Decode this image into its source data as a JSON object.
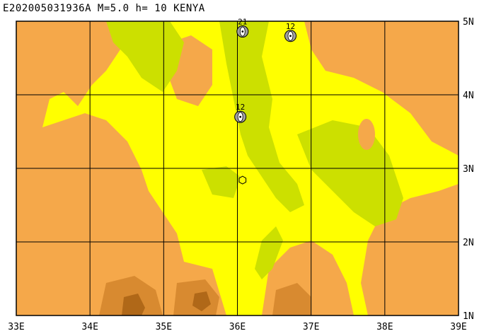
{
  "title": "E202005031936A M=5.0 h= 10 KENYA",
  "map": {
    "lon_range": [
      33,
      39
    ],
    "lat_range": [
      1,
      5
    ],
    "lon_ticks": [
      {
        "value": 33,
        "label": "33E"
      },
      {
        "value": 34,
        "label": "34E"
      },
      {
        "value": 35,
        "label": "35E"
      },
      {
        "value": 36,
        "label": "36E"
      },
      {
        "value": 37,
        "label": "37E"
      },
      {
        "value": 38,
        "label": "38E"
      },
      {
        "value": 39,
        "label": "39E"
      }
    ],
    "lat_ticks": [
      {
        "value": 5,
        "label": "5N"
      },
      {
        "value": 4,
        "label": "4N"
      },
      {
        "value": 3,
        "label": "3N"
      },
      {
        "value": 2,
        "label": "2N"
      },
      {
        "value": 1,
        "label": "1N"
      }
    ],
    "colors": {
      "yellow": "#ffff00",
      "orange": "#f5a84a",
      "green": "#cce000",
      "brown": "#d88a30",
      "dark_brown": "#b06818",
      "grid": "#000000"
    },
    "epicenter": {
      "lon": 36.07,
      "lat": 2.84
    },
    "mechanisms": [
      {
        "lon": 36.07,
        "lat": 4.86,
        "label": "21"
      },
      {
        "lon": 36.72,
        "lat": 4.8,
        "label": "12"
      },
      {
        "lon": 36.04,
        "lat": 3.7,
        "label": "12"
      }
    ]
  }
}
